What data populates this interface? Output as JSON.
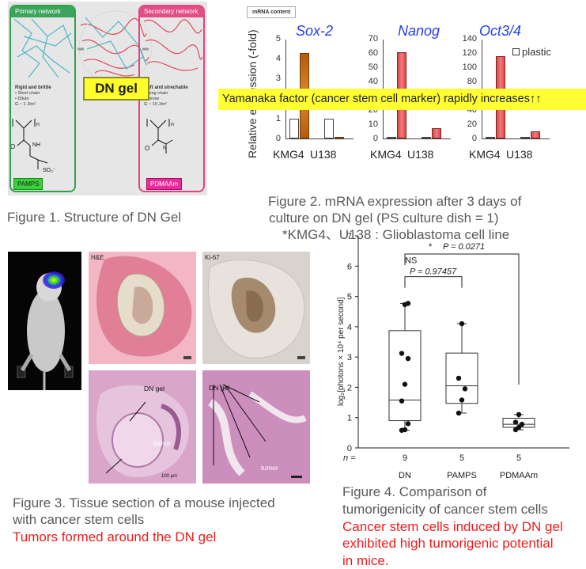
{
  "figure1": {
    "primary_title": "Primary network",
    "secondary_title": "Secondary network",
    "primary_desc_heading": "Rigid and brittle",
    "primary_desc_lines": [
      "• Short chain",
      "• Dilute",
      "G ~ 1 J/m²"
    ],
    "secondary_desc_heading": "Soft and strechable",
    "secondary_desc_lines": [
      "• Long chain",
      "• Dense",
      "G ~ 10 J/m²"
    ],
    "dn_gel_label": "DN gel",
    "pamps_label": "PAMPS",
    "pdmaam_label": "PDMAAm",
    "caption": "Figure 1. Structure of DN Gel",
    "colors": {
      "primary": "#2ea24a",
      "secondary": "#e0467f",
      "dn_gel_bg": "#ffff2a"
    }
  },
  "figure2": {
    "badge": "mRNA content",
    "ylabel": "Relative expression (-fold)",
    "legend": "plastic",
    "banner": "Yamanaka factor (cancer stem cell marker) rapidly increases↑↑",
    "caption_lines": [
      "Figure 2. mRNA expression after 3 days of",
      "culture on DN gel (PS culture dish = 1)",
      "*KMG4、U138 : Glioblastoma cell line"
    ]
  },
  "figure3": {
    "he_label": "H&E",
    "ki67_label": "Ki-67",
    "dn_gel_label_1": "DN gel",
    "tumor_label_1": "tumor",
    "dn_gel_label_2": "DN gel",
    "tumor_label_2": "tumor",
    "scale_1": "100 μm",
    "caption_lines": [
      "Figure 3. Tissue section of a mouse injected",
      "with cancer stem cells"
    ],
    "highlight": "Tumors formed around the DN gel"
  },
  "figure4": {
    "ylabel": "log₂[photons × 10⁴ per second]",
    "caption_lines": [
      "Figure 4. Comparison of",
      "tumorigenicity of cancer stem cells"
    ],
    "highlight_lines": [
      "Cancer stem cells induced by DN gel",
      "exhibited high tumorigenic potential",
      "in mice."
    ]
  },
  "chart_data": [
    {
      "type": "bar",
      "title": "Sox-2",
      "categories": [
        "KMG4",
        "U138"
      ],
      "series": [
        {
          "name": "plastic",
          "values": [
            1,
            1
          ]
        },
        {
          "values": [
            4.3,
            0.02
          ]
        }
      ],
      "ylim": [
        0,
        5
      ],
      "yticks": [
        0,
        1,
        2,
        3,
        4,
        5
      ]
    },
    {
      "type": "bar",
      "title": "Nanog",
      "categories": [
        "KMG4",
        "U138"
      ],
      "series": [
        {
          "name": "plastic",
          "values": [
            1,
            1
          ]
        },
        {
          "values": [
            60.5,
            7.5
          ]
        }
      ],
      "ylim": [
        0,
        70
      ],
      "yticks": [
        0,
        10,
        20,
        30,
        40,
        50,
        60,
        70
      ]
    },
    {
      "type": "bar",
      "title": "Oct3/4",
      "categories": [
        "KMG4",
        "U138"
      ],
      "series": [
        {
          "name": "plastic",
          "values": [
            1,
            1
          ]
        },
        {
          "values": [
            116,
            9.5
          ]
        }
      ],
      "ylim": [
        0,
        140
      ],
      "yticks": [
        0,
        20,
        40,
        60,
        80,
        100,
        120,
        140
      ]
    },
    {
      "type": "scatter",
      "subtype": "box",
      "categories": [
        "DN",
        "PAMPS",
        "PDMAAm"
      ],
      "n_label": "n =",
      "n": [
        9,
        5,
        5
      ],
      "ylabel": "log₂[photons × 10⁴ per second]",
      "ylim": [
        0,
        7
      ],
      "yticks": [
        0,
        1,
        2,
        3,
        4,
        5,
        6,
        7
      ],
      "boxes": [
        {
          "min": 0.58,
          "q1": 0.9,
          "median": 1.58,
          "q3": 3.87,
          "max": 4.77
        },
        {
          "min": 1.15,
          "q1": 1.47,
          "median": 2.05,
          "q3": 3.13,
          "max": 4.1
        },
        {
          "min": 0.6,
          "q1": 0.68,
          "median": 0.78,
          "q3": 0.98,
          "max": 1.1
        }
      ],
      "points": [
        [
          0.58,
          0.6,
          0.8,
          1.55,
          2.1,
          2.95,
          3.12,
          4.73,
          4.77
        ],
        [
          1.15,
          1.58,
          1.95,
          2.3,
          4.1
        ],
        [
          0.6,
          0.68,
          0.78,
          0.85,
          1.1
        ]
      ],
      "comparisons": [
        {
          "label": "NS",
          "p_text": "P = 0.97457",
          "groups": [
            "DN",
            "PAMPS"
          ]
        },
        {
          "label": "*",
          "p_text": "P = 0.0271",
          "groups": [
            "DN",
            "PDMAAm"
          ]
        }
      ]
    }
  ]
}
